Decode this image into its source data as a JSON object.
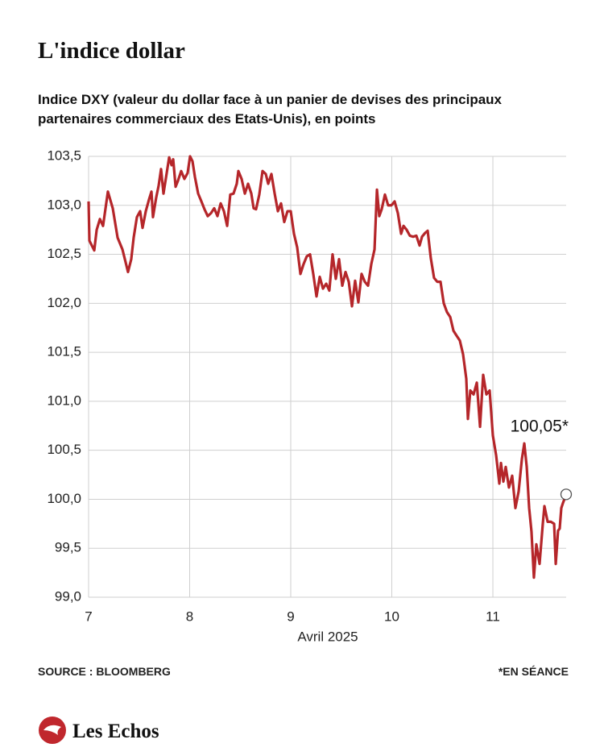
{
  "chart_data": {
    "type": "line",
    "title": "L'indice dollar",
    "subtitle": [
      "Indice DXY (valeur du dollar face à un panier de devises des principaux",
      "partenaires commerciaux des Etats-Unis), en points"
    ],
    "x_label": "Avril 2025",
    "annotation": "100,05*",
    "source": "SOURCE : BLOOMBERG",
    "note": "*EN SÉANCE",
    "brand": "Les Echos",
    "xlim": [
      7,
      11.725
    ],
    "xticks": [
      7,
      8,
      9,
      10,
      11
    ],
    "ylim": [
      99.0,
      103.5
    ],
    "yticks": [
      {
        "value": 99.0,
        "label": "99,0"
      },
      {
        "value": 99.5,
        "label": "99,5"
      },
      {
        "value": 100.0,
        "label": "100,0"
      },
      {
        "value": 100.5,
        "label": "100,5"
      },
      {
        "value": 101.0,
        "label": "101,0"
      },
      {
        "value": 101.5,
        "label": "101,5"
      },
      {
        "value": 102.0,
        "label": "102,0"
      },
      {
        "value": 102.5,
        "label": "102,5"
      },
      {
        "value": 103.0,
        "label": "103,0"
      },
      {
        "value": 103.5,
        "label": "103,5"
      }
    ],
    "grid": true,
    "series": [
      {
        "color": "#b5262a",
        "x": [
          7.0,
          7.008,
          7.056,
          7.08,
          7.112,
          7.143,
          7.191,
          7.239,
          7.287,
          7.335,
          7.359,
          7.39,
          7.422,
          7.446,
          7.478,
          7.51,
          7.534,
          7.566,
          7.598,
          7.622,
          7.637,
          7.669,
          7.693,
          7.717,
          7.741,
          7.773,
          7.797,
          7.821,
          7.837,
          7.861,
          7.884,
          7.916,
          7.948,
          7.98,
          8.004,
          8.028,
          8.052,
          8.084,
          8.116,
          8.147,
          8.179,
          8.211,
          8.243,
          8.275,
          8.307,
          8.339,
          8.371,
          8.402,
          8.434,
          8.466,
          8.482,
          8.514,
          8.546,
          8.578,
          8.61,
          8.633,
          8.657,
          8.689,
          8.721,
          8.753,
          8.777,
          8.809,
          8.841,
          8.873,
          8.904,
          8.936,
          8.968,
          9.0,
          9.032,
          9.064,
          9.096,
          9.127,
          9.159,
          9.191,
          9.223,
          9.255,
          9.287,
          9.319,
          9.351,
          9.382,
          9.414,
          9.446,
          9.478,
          9.51,
          9.542,
          9.574,
          9.606,
          9.637,
          9.669,
          9.701,
          9.733,
          9.765,
          9.797,
          9.829,
          9.853,
          9.876,
          9.9,
          9.932,
          9.964,
          9.996,
          10.028,
          10.06,
          10.092,
          10.116,
          10.147,
          10.179,
          10.211,
          10.243,
          10.275,
          10.299,
          10.331,
          10.355,
          10.386,
          10.418,
          10.45,
          10.482,
          10.514,
          10.546,
          10.578,
          10.61,
          10.641,
          10.673,
          10.705,
          10.737,
          10.753,
          10.777,
          10.809,
          10.841,
          10.873,
          10.904,
          10.936,
          10.968,
          11.0,
          11.032,
          11.064,
          11.08,
          11.104,
          11.127,
          11.159,
          11.191,
          11.223,
          11.255,
          11.287,
          11.311,
          11.335,
          11.359,
          11.382,
          11.406,
          11.43,
          11.462,
          11.494,
          11.51,
          11.542,
          11.574,
          11.606,
          11.622,
          11.645,
          11.661,
          11.677,
          11.693,
          11.725
        ],
        "values": [
          103.04,
          102.64,
          102.54,
          102.75,
          102.86,
          102.79,
          103.14,
          102.97,
          102.67,
          102.55,
          102.45,
          102.32,
          102.45,
          102.67,
          102.88,
          102.94,
          102.77,
          102.94,
          103.06,
          103.14,
          102.88,
          103.08,
          103.2,
          103.37,
          103.12,
          103.33,
          103.49,
          103.41,
          103.47,
          103.19,
          103.25,
          103.35,
          103.27,
          103.33,
          103.5,
          103.45,
          103.29,
          103.12,
          103.04,
          102.96,
          102.89,
          102.92,
          102.97,
          102.89,
          103.02,
          102.94,
          102.79,
          103.11,
          103.12,
          103.22,
          103.35,
          103.27,
          103.12,
          103.22,
          103.12,
          102.97,
          102.96,
          103.11,
          103.35,
          103.32,
          103.22,
          103.32,
          103.12,
          102.94,
          103.02,
          102.83,
          102.94,
          102.94,
          102.71,
          102.57,
          102.3,
          102.4,
          102.48,
          102.5,
          102.3,
          102.07,
          102.27,
          102.15,
          102.2,
          102.13,
          102.5,
          102.25,
          102.45,
          102.18,
          102.32,
          102.22,
          101.97,
          102.23,
          102.01,
          102.3,
          102.22,
          102.18,
          102.4,
          102.55,
          103.16,
          102.89,
          102.96,
          103.11,
          103.0,
          103.0,
          103.04,
          102.92,
          102.71,
          102.79,
          102.75,
          102.69,
          102.68,
          102.69,
          102.59,
          102.68,
          102.72,
          102.74,
          102.46,
          102.26,
          102.22,
          102.22,
          102.0,
          101.91,
          101.86,
          101.72,
          101.67,
          101.62,
          101.48,
          101.23,
          100.82,
          101.11,
          101.07,
          101.19,
          100.74,
          101.27,
          101.07,
          101.11,
          100.65,
          100.45,
          100.16,
          100.37,
          100.18,
          100.33,
          100.12,
          100.24,
          99.91,
          100.08,
          100.41,
          100.57,
          100.33,
          99.91,
          99.67,
          99.2,
          99.54,
          99.34,
          99.75,
          99.93,
          99.77,
          99.77,
          99.75,
          99.34,
          99.68,
          99.7,
          99.91,
          99.96,
          100.05
        ]
      }
    ]
  }
}
